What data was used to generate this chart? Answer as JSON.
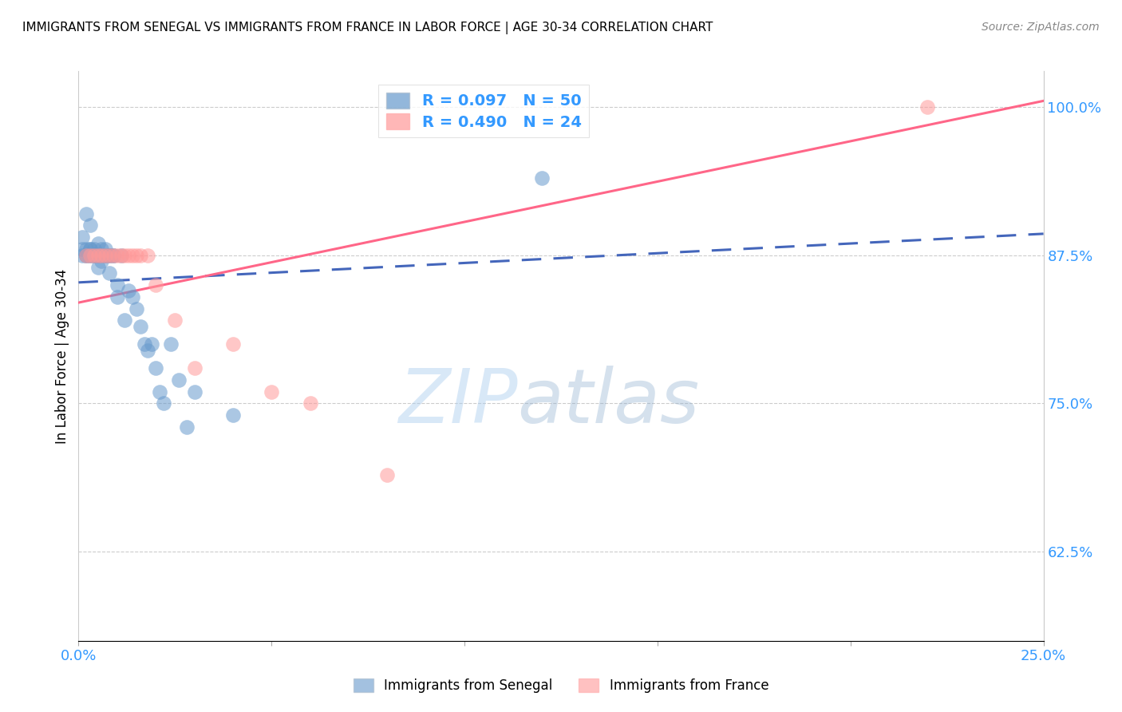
{
  "title": "IMMIGRANTS FROM SENEGAL VS IMMIGRANTS FROM FRANCE IN LABOR FORCE | AGE 30-34 CORRELATION CHART",
  "source": "Source: ZipAtlas.com",
  "ylabel": "In Labor Force | Age 30-34",
  "legend_label1": "Immigrants from Senegal",
  "legend_label2": "Immigrants from France",
  "R1": 0.097,
  "N1": 50,
  "R2": 0.49,
  "N2": 24,
  "color1": "#6699CC",
  "color2": "#FF9999",
  "trendline1_color": "#4466BB",
  "trendline2_color": "#FF6688",
  "xlim": [
    0.0,
    0.25
  ],
  "ylim": [
    0.55,
    1.03
  ],
  "xticks": [
    0.0,
    0.05,
    0.1,
    0.15,
    0.2,
    0.25
  ],
  "yticks_right": [
    1.0,
    0.875,
    0.75,
    0.625
  ],
  "ytick_right_labels": [
    "100.0%",
    "87.5%",
    "75.0%",
    "62.5%"
  ],
  "watermark_zip": "ZIP",
  "watermark_atlas": "atlas",
  "senegal_x": [
    0.001,
    0.001,
    0.001,
    0.002,
    0.002,
    0.002,
    0.002,
    0.003,
    0.003,
    0.003,
    0.003,
    0.003,
    0.004,
    0.004,
    0.004,
    0.005,
    0.005,
    0.005,
    0.005,
    0.006,
    0.006,
    0.006,
    0.007,
    0.007,
    0.007,
    0.008,
    0.008,
    0.008,
    0.009,
    0.009,
    0.01,
    0.01,
    0.011,
    0.012,
    0.013,
    0.014,
    0.015,
    0.016,
    0.017,
    0.018,
    0.019,
    0.02,
    0.021,
    0.022,
    0.024,
    0.026,
    0.028,
    0.03,
    0.04,
    0.12
  ],
  "senegal_y": [
    0.88,
    0.875,
    0.89,
    0.875,
    0.88,
    0.91,
    0.875,
    0.875,
    0.88,
    0.88,
    0.875,
    0.9,
    0.88,
    0.875,
    0.875,
    0.885,
    0.875,
    0.875,
    0.865,
    0.88,
    0.875,
    0.87,
    0.875,
    0.88,
    0.875,
    0.875,
    0.86,
    0.875,
    0.875,
    0.875,
    0.85,
    0.84,
    0.875,
    0.82,
    0.845,
    0.84,
    0.83,
    0.815,
    0.8,
    0.795,
    0.8,
    0.78,
    0.76,
    0.75,
    0.8,
    0.77,
    0.73,
    0.76,
    0.74,
    0.94
  ],
  "france_x": [
    0.002,
    0.003,
    0.004,
    0.005,
    0.006,
    0.007,
    0.008,
    0.009,
    0.01,
    0.011,
    0.012,
    0.013,
    0.014,
    0.015,
    0.016,
    0.018,
    0.02,
    0.025,
    0.03,
    0.04,
    0.05,
    0.06,
    0.08,
    0.22
  ],
  "france_y": [
    0.875,
    0.875,
    0.875,
    0.875,
    0.875,
    0.875,
    0.875,
    0.875,
    0.875,
    0.875,
    0.875,
    0.875,
    0.875,
    0.875,
    0.875,
    0.875,
    0.85,
    0.82,
    0.78,
    0.8,
    0.76,
    0.75,
    0.69,
    1.0
  ],
  "trendline1_x0": 0.0,
  "trendline1_x1": 0.25,
  "trendline1_y0": 0.852,
  "trendline1_y1": 0.893,
  "trendline2_x0": 0.0,
  "trendline2_x1": 0.25,
  "trendline2_y0": 0.835,
  "trendline2_y1": 1.005
}
